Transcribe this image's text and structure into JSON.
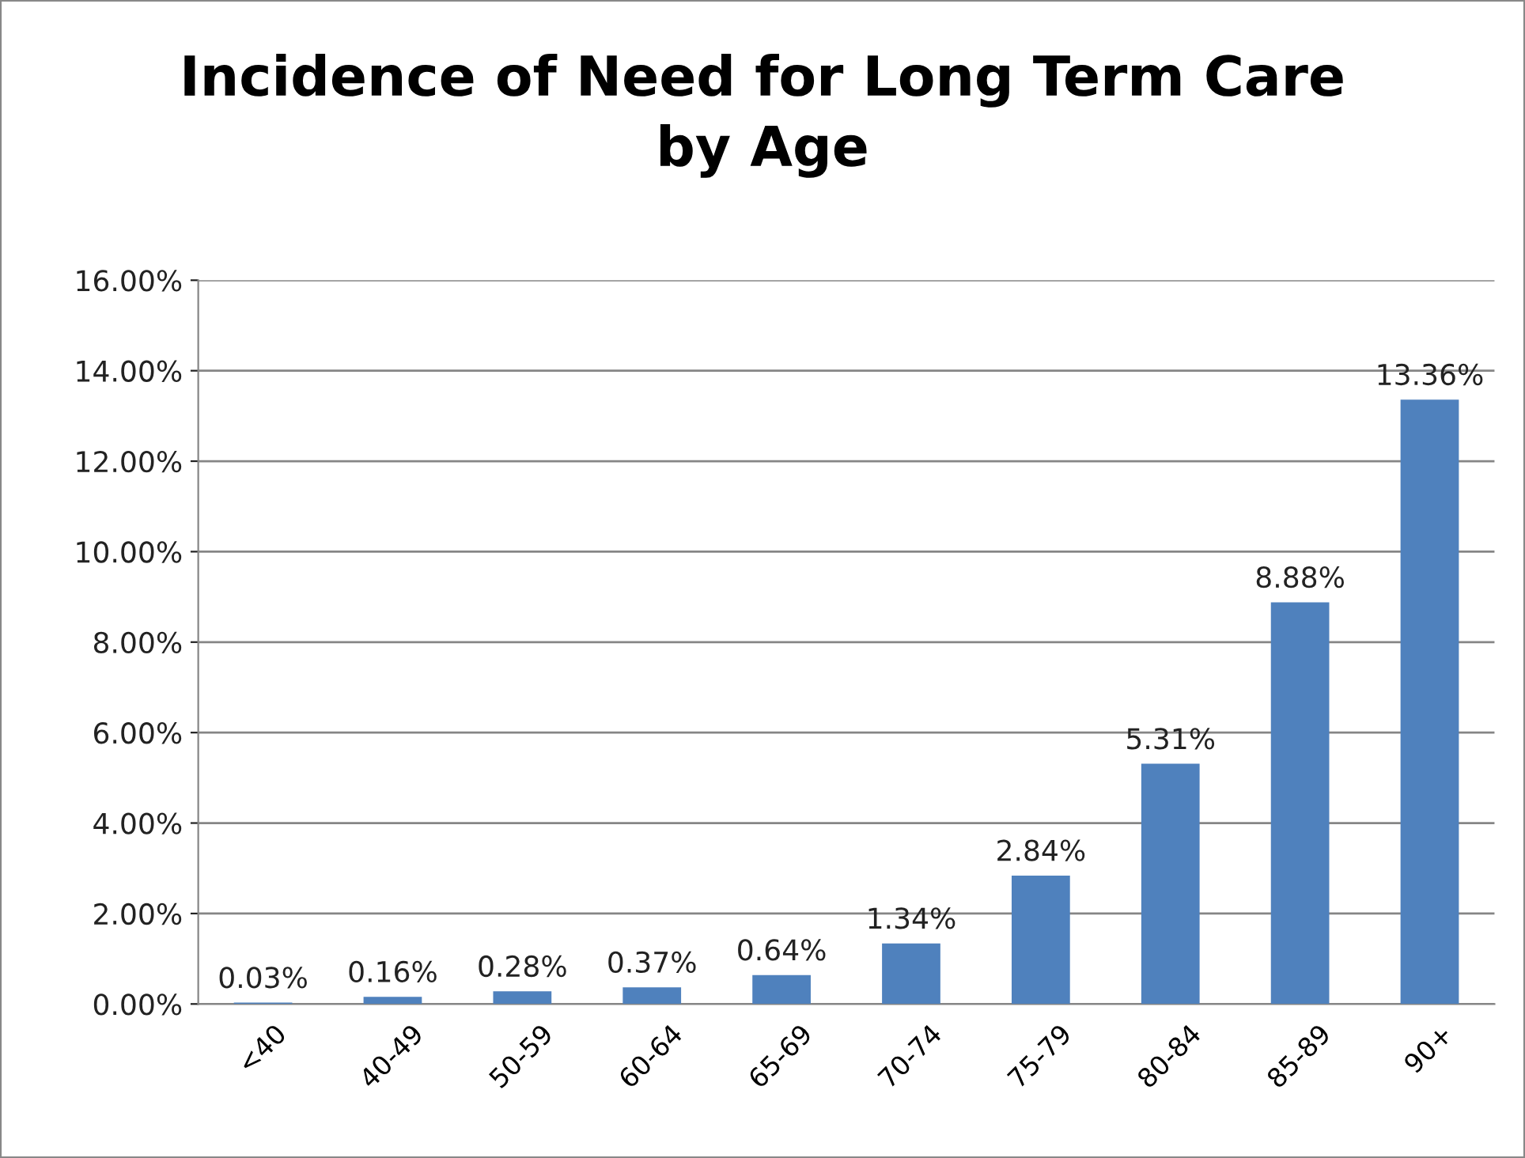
{
  "chart_data": {
    "type": "bar",
    "title": "Incidence of Need for Long Term Care\nby Age",
    "categories": [
      "<40",
      "40-49",
      "50-59",
      "60-64",
      "65-69",
      "70-74",
      "75-79",
      "80-84",
      "85-89",
      "90+"
    ],
    "values": [
      0.03,
      0.16,
      0.28,
      0.37,
      0.64,
      1.34,
      2.84,
      5.31,
      8.88,
      13.36
    ],
    "value_labels": [
      "0.03%",
      "0.16%",
      "0.28%",
      "0.37%",
      "0.64%",
      "1.34%",
      "2.84%",
      "5.31%",
      "8.88%",
      "13.36%"
    ],
    "color": "#4f81bd",
    "ylim": [
      0,
      16
    ],
    "yticks": [
      {
        "value": 0,
        "label": "0.00%"
      },
      {
        "value": 2,
        "label": "2.00%"
      },
      {
        "value": 4,
        "label": "4.00%"
      },
      {
        "value": 6,
        "label": "6.00%"
      },
      {
        "value": 8,
        "label": "8.00%"
      },
      {
        "value": 10,
        "label": "10.00%"
      },
      {
        "value": 12,
        "label": "12.00%"
      },
      {
        "value": 14,
        "label": "14.00%"
      },
      {
        "value": 16,
        "label": "16.00%"
      }
    ],
    "grid": "y",
    "legend": false
  }
}
